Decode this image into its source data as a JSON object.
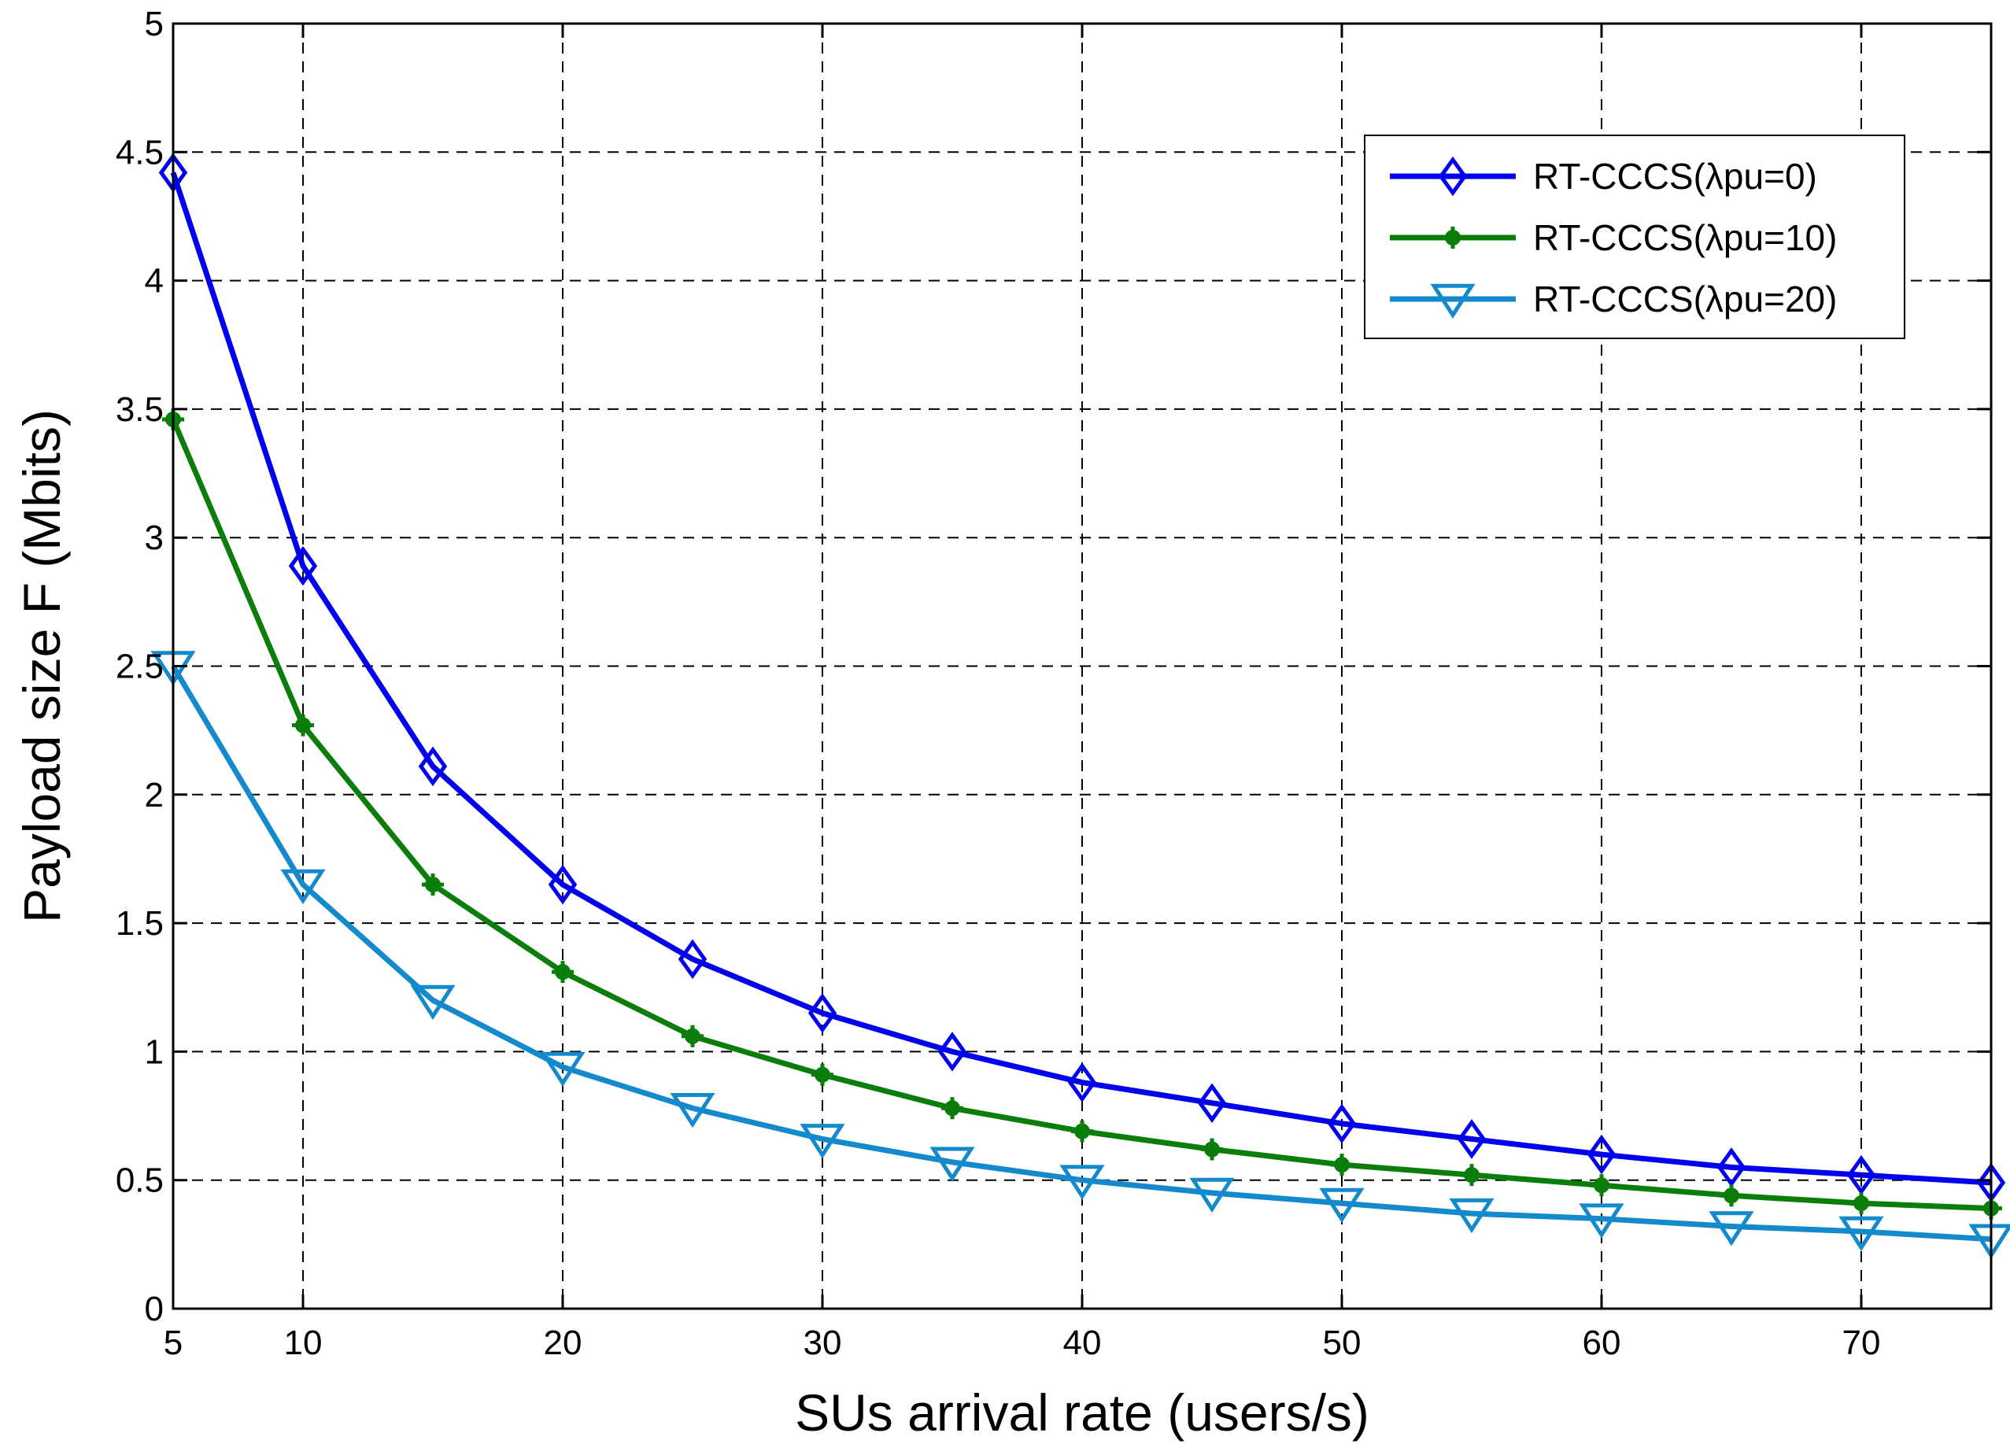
{
  "chart_data": {
    "type": "line",
    "title": "",
    "xlabel": "SUs arrival rate (users/s)",
    "ylabel": "Payload size F (Mbits)",
    "xlim": [
      5,
      75
    ],
    "ylim": [
      0,
      5
    ],
    "x_ticks": [
      5,
      10,
      20,
      30,
      40,
      50,
      60,
      70
    ],
    "x_tick_labels": [
      "5",
      "10",
      "20",
      "30",
      "40",
      "50",
      "60",
      "70"
    ],
    "y_ticks": [
      0,
      0.5,
      1,
      1.5,
      2,
      2.5,
      3,
      3.5,
      4,
      4.5,
      5
    ],
    "y_tick_labels": [
      "0",
      "0.5",
      "1",
      "1.5",
      "2",
      "2.5",
      "3",
      "3.5",
      "4",
      "4.5",
      "5"
    ],
    "grid": true,
    "legend_position": "top-right",
    "x": [
      5,
      10,
      15,
      20,
      25,
      30,
      35,
      40,
      45,
      50,
      55,
      60,
      65,
      70,
      75
    ],
    "series": [
      {
        "name": "RT-CCCS(λpu=0)",
        "color": "#0000ee",
        "marker": "diamond",
        "values": [
          4.42,
          2.89,
          2.11,
          1.65,
          1.36,
          1.15,
          1.0,
          0.88,
          0.8,
          0.72,
          0.66,
          0.6,
          0.55,
          0.52,
          0.49
        ]
      },
      {
        "name": "RT-CCCS(λpu=10)",
        "color": "#0a7d0a",
        "marker": "dot",
        "values": [
          3.46,
          2.27,
          1.65,
          1.31,
          1.06,
          0.91,
          0.78,
          0.69,
          0.62,
          0.56,
          0.52,
          0.48,
          0.44,
          0.41,
          0.39
        ]
      },
      {
        "name": "RT-CCCS(λpu=20)",
        "color": "#1489cc",
        "marker": "triangle-down",
        "values": [
          2.5,
          1.65,
          1.2,
          0.94,
          0.78,
          0.66,
          0.57,
          0.5,
          0.45,
          0.41,
          0.37,
          0.35,
          0.32,
          0.3,
          0.27
        ]
      }
    ]
  }
}
